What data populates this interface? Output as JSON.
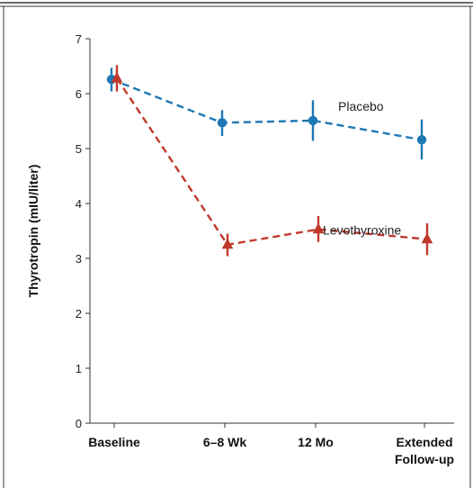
{
  "chart_data": {
    "type": "line",
    "title": "",
    "xlabel": "",
    "ylabel": "Thyrotropin (mIU/liter)",
    "categories": [
      "Baseline",
      "6–8 Wk",
      "12 Mo",
      "Extended\nFollow-up"
    ],
    "ylim": [
      0,
      7
    ],
    "yticks": [
      0,
      1,
      2,
      3,
      4,
      5,
      6,
      7
    ],
    "grid": false,
    "legend": "inline labels",
    "series": [
      {
        "name": "Placebo",
        "color": "#1f78b4",
        "marker": "circle",
        "line_style": "dashed",
        "values": [
          6.26,
          5.47,
          5.51,
          5.16
        ],
        "error_low": [
          6.04,
          5.23,
          5.14,
          4.8
        ],
        "error_high": [
          6.47,
          5.7,
          5.88,
          5.53
        ]
      },
      {
        "name": "Levothyroxine",
        "color": "#c0392b",
        "marker": "triangle",
        "line_style": "dashed",
        "values": [
          6.28,
          3.25,
          3.53,
          3.35
        ],
        "error_low": [
          6.04,
          3.04,
          3.3,
          3.06
        ],
        "error_high": [
          6.52,
          3.45,
          3.77,
          3.64
        ]
      }
    ]
  }
}
